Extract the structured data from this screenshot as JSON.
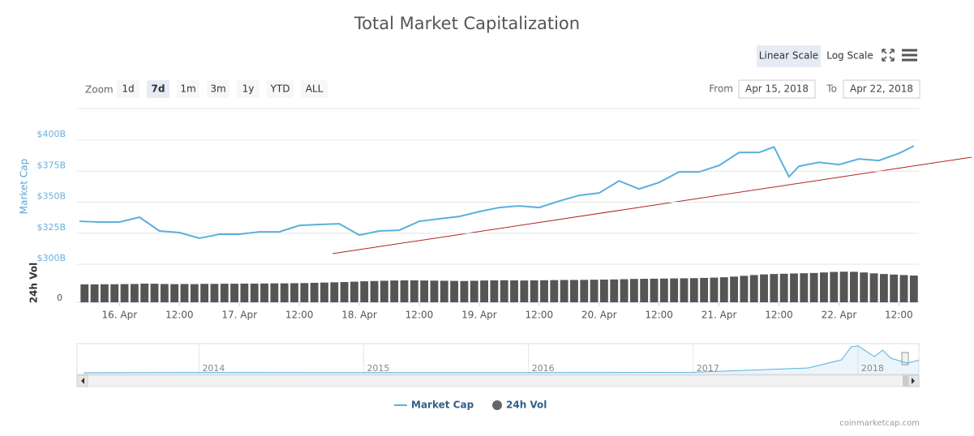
{
  "chart_data": {
    "type": "line",
    "title": "Total Market Capitalization",
    "ylabel": "Market Cap",
    "y2label": "24h Vol",
    "controls": {
      "zoom_label": "Zoom",
      "zoom_buttons": [
        "1d",
        "7d",
        "1m",
        "3m",
        "1y",
        "YTD",
        "ALL"
      ],
      "zoom_selected": "7d",
      "scale_buttons": [
        "Linear Scale",
        "Log Scale"
      ],
      "scale_selected": "Linear Scale",
      "from_label": "From",
      "from": "Apr 15, 2018",
      "to_label": "To",
      "to": "Apr 22, 2018"
    },
    "xlim": [
      15.5,
      184
    ],
    "xticks": [
      {
        "value": 24,
        "label": "16. Apr"
      },
      {
        "value": 36,
        "label": "12:00"
      },
      {
        "value": 48,
        "label": "17. Apr"
      },
      {
        "value": 60,
        "label": "12:00"
      },
      {
        "value": 72,
        "label": "18. Apr"
      },
      {
        "value": 84,
        "label": "12:00"
      },
      {
        "value": 96,
        "label": "19. Apr"
      },
      {
        "value": 108,
        "label": "12:00"
      },
      {
        "value": 120,
        "label": "20. Apr"
      },
      {
        "value": 132,
        "label": "12:00"
      },
      {
        "value": 144,
        "label": "21. Apr"
      },
      {
        "value": 156,
        "label": "12:00"
      },
      {
        "value": 168,
        "label": "22. Apr"
      },
      {
        "value": 180,
        "label": "12:00"
      }
    ],
    "ylim": [
      300,
      400
    ],
    "yticks": [
      {
        "value": 300,
        "label": "$300B"
      },
      {
        "value": 325,
        "label": "$325B"
      },
      {
        "value": 350,
        "label": "$350B"
      },
      {
        "value": 375,
        "label": "$375B"
      },
      {
        "value": 400,
        "label": "$400B"
      }
    ],
    "y2lim": [
      0,
      30
    ],
    "y2ticks": [
      0
    ],
    "grid": true,
    "series": [
      {
        "name": "Market Cap",
        "color": "#5ab0de",
        "type": "line",
        "x": [
          16,
          20,
          24,
          28,
          32,
          36,
          40,
          44,
          48,
          52,
          56,
          60,
          64,
          68,
          72,
          76,
          80,
          84,
          88,
          92,
          96,
          100,
          104,
          108,
          112,
          116,
          120,
          124,
          128,
          132,
          136,
          140,
          144,
          148,
          152,
          155,
          158,
          160,
          164,
          168,
          172,
          176,
          180,
          183
        ],
        "values": [
          334.6,
          334,
          334,
          337.9,
          326.8,
          325.5,
          320.9,
          324.2,
          324.2,
          326.1,
          326.1,
          331.3,
          332,
          332.6,
          323.5,
          326.8,
          327.4,
          334.6,
          336.6,
          338.5,
          342.4,
          345.7,
          347,
          345.7,
          350.9,
          355.5,
          357.4,
          367.2,
          360.7,
          365.9,
          374.4,
          374.4,
          379.6,
          390.1,
          390.1,
          394.6,
          370.5,
          379,
          382.2,
          380.3,
          384.9,
          383.6,
          389.4,
          395.3
        ]
      },
      {
        "name": "24h Vol",
        "color": "#555555",
        "type": "column",
        "axis": "y2",
        "x": [
          17,
          19,
          21,
          23,
          25,
          27,
          29,
          31,
          33,
          35,
          37,
          39,
          41,
          43,
          45,
          47,
          49,
          51,
          53,
          55,
          57,
          59,
          61,
          63,
          65,
          67,
          69,
          71,
          73,
          75,
          77,
          79,
          81,
          83,
          85,
          87,
          89,
          91,
          93,
          95,
          97,
          99,
          101,
          103,
          105,
          107,
          109,
          111,
          113,
          115,
          117,
          119,
          121,
          123,
          125,
          127,
          129,
          131,
          133,
          135,
          137,
          139,
          141,
          143,
          145,
          147,
          149,
          151,
          153,
          155,
          157,
          159,
          161,
          163,
          165,
          167,
          169,
          171,
          173,
          175,
          177,
          179,
          181,
          183
        ],
        "values": [
          13.8,
          13.8,
          13.9,
          13.9,
          14.0,
          14.1,
          14.4,
          14.3,
          14.1,
          14.0,
          14.1,
          14.0,
          14.2,
          14.2,
          14.3,
          14.3,
          14.4,
          14.4,
          14.5,
          14.6,
          14.6,
          14.7,
          14.8,
          15.0,
          15.2,
          15.4,
          15.6,
          15.9,
          16.2,
          16.4,
          16.6,
          16.8,
          16.9,
          16.9,
          16.8,
          16.7,
          16.6,
          16.5,
          16.4,
          16.6,
          16.8,
          16.9,
          17.0,
          16.9,
          16.8,
          16.9,
          17.0,
          17.1,
          17.2,
          17.2,
          17.3,
          17.4,
          17.5,
          17.6,
          17.8,
          18.0,
          18.1,
          18.2,
          18.3,
          18.4,
          18.5,
          18.6,
          18.8,
          19.0,
          19.3,
          19.8,
          20.4,
          21.0,
          21.5,
          21.8,
          22.0,
          22.2,
          22.4,
          22.6,
          23.0,
          23.4,
          23.6,
          23.5,
          23.0,
          22.3,
          21.8,
          21.4,
          21.0,
          20.6
        ]
      }
    ],
    "navigator": {
      "xlim": [
        2013.26,
        2018.37
      ],
      "ylim": [
        0,
        900
      ],
      "xticks": [
        2014,
        2015,
        2016,
        2017,
        2018
      ],
      "x": [
        2013.3,
        2014,
        2015,
        2016,
        2016.5,
        2017,
        2017.4,
        2017.7,
        2017.9,
        2017.96,
        2018,
        2018.1,
        2018.15,
        2018.2,
        2018.3,
        2018.37
      ],
      "values": [
        1,
        10,
        5,
        7,
        10,
        17,
        90,
        150,
        400,
        800,
        830,
        500,
        700,
        450,
        300,
        390
      ]
    },
    "credit": "coinmarketcap.com"
  }
}
